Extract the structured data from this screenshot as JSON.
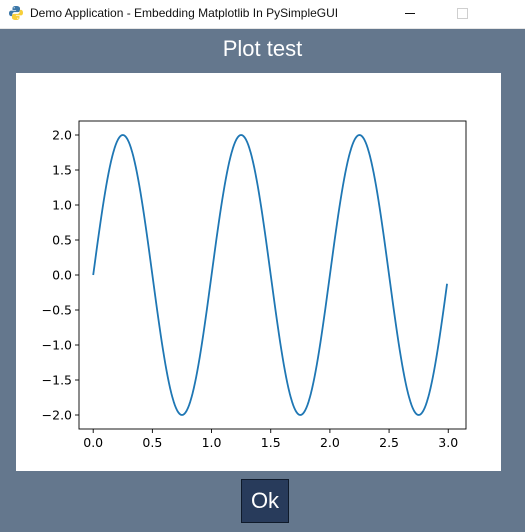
{
  "window": {
    "title": "Demo Application - Embedding Matplotlib In PySimpleGUI",
    "background_color": "#64778d",
    "icon": "python-icon"
  },
  "controls": {
    "minimize_icon": "minimize-icon",
    "maximize_icon": "maximize-icon",
    "close_icon": "close-icon"
  },
  "heading": "Plot test",
  "ok_label": "Ok",
  "button_color": "#283b5b",
  "chart_data": {
    "type": "line",
    "title": "",
    "xlabel": "",
    "ylabel": "",
    "xlim": [
      -0.12,
      3.15
    ],
    "ylim": [
      -2.2,
      2.2
    ],
    "grid": false,
    "legend": false,
    "line_color": "#1f77b4",
    "function": "2*sin(2*pi*x)",
    "x_range": [
      0,
      2.99
    ],
    "x_step": 0.01,
    "x_ticks": [
      0,
      0.5,
      1,
      1.5,
      2,
      2.5,
      3
    ],
    "x_tick_labels": [
      "0.0",
      "0.5",
      "1.0",
      "1.5",
      "2.0",
      "2.5",
      "3.0"
    ],
    "y_ticks": [
      2,
      1.5,
      1,
      0.5,
      0,
      -0.5,
      -1,
      -1.5,
      -2
    ],
    "y_tick_labels": [
      "2.0",
      "1.5",
      "1.0",
      "0.5",
      "0.0",
      "−0.5",
      "−1.0",
      "−1.5",
      "−2.0"
    ],
    "series": [
      {
        "x": [
          0,
          0.125,
          0.25,
          0.375,
          0.5,
          0.625,
          0.75,
          0.875,
          1,
          1.125,
          1.25,
          1.375,
          1.5,
          1.625,
          1.75,
          1.875,
          2,
          2.125,
          2.25,
          2.375,
          2.5,
          2.625,
          2.75,
          2.875,
          2.99
        ],
        "y": [
          0,
          1.414,
          2,
          1.414,
          0,
          -1.414,
          -2,
          -1.414,
          0,
          1.414,
          2,
          1.414,
          0,
          -1.414,
          -2,
          -1.414,
          0,
          1.414,
          2,
          1.414,
          0,
          -1.414,
          -2,
          -1.414,
          -0.126
        ]
      }
    ]
  }
}
